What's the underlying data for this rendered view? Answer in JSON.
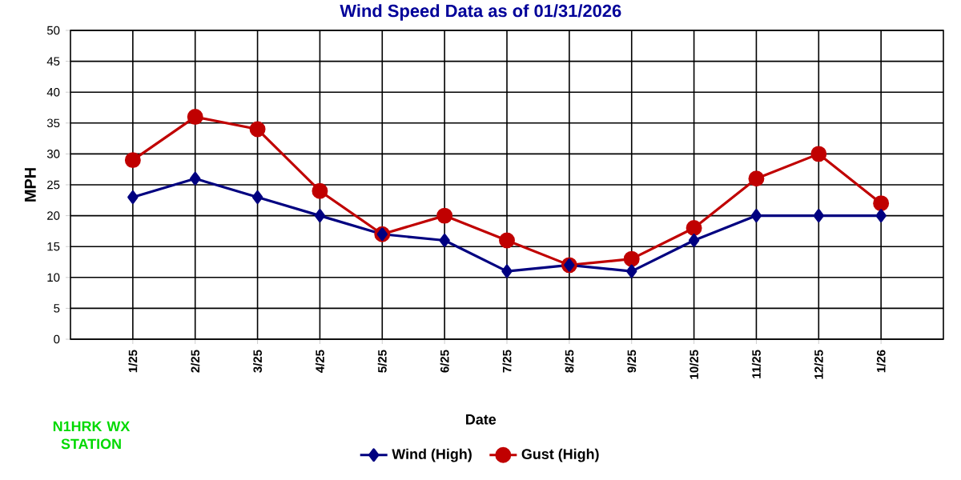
{
  "chart_data": {
    "type": "line",
    "title": "Wind Speed Data as of 01/31/2026",
    "xlabel": "Date",
    "ylabel": "MPH",
    "categories": [
      "1/25",
      "2/25",
      "3/25",
      "4/25",
      "5/25",
      "6/25",
      "7/25",
      "8/25",
      "9/25",
      "10/25",
      "11/25",
      "12/25",
      "1/26"
    ],
    "series": [
      {
        "name": "Wind (High)",
        "color": "#000080",
        "marker": "diamond",
        "values": [
          23,
          26,
          23,
          20,
          17,
          16,
          11,
          12,
          11,
          16,
          20,
          20,
          20
        ]
      },
      {
        "name": "Gust (High)",
        "color": "#c00000",
        "marker": "circle",
        "values": [
          29,
          36,
          34,
          24,
          17,
          20,
          16,
          12,
          13,
          18,
          26,
          30,
          22
        ]
      }
    ],
    "ylim": [
      0,
      50
    ],
    "yticks": [
      0,
      5,
      10,
      15,
      20,
      25,
      30,
      35,
      40,
      45,
      50
    ],
    "grid": true,
    "legend": "bottom",
    "line_style": "solid",
    "annotations": [
      "N1HRK WX STATION"
    ]
  }
}
